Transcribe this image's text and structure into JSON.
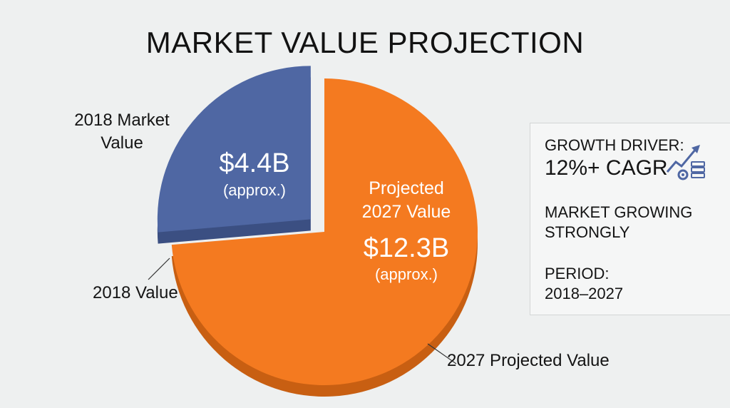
{
  "title": "MARKET VALUE PROJECTION",
  "labels": {
    "market_2018_line1": "2018 Market",
    "market_2018_line2": "Value",
    "value_2018": "2018 Value",
    "projected_2027": "2027 Projected Value"
  },
  "slices_text": {
    "blue_value": "$4.4B",
    "blue_approx": "(approx.)",
    "orange_line1": "Projected",
    "orange_line2": "2027 Value",
    "orange_value": "$12.3B",
    "orange_approx": "(approx.)"
  },
  "info_box": {
    "driver_label": "GROWTH DRIVER:",
    "driver_value": "12%+ CAGR",
    "growing_line1": "MARKET GROWING",
    "growing_line2": "STRONGLY",
    "period_label": "PERIOD:",
    "period_value": "2018–2027",
    "icon": "growth-chart-icon"
  },
  "colors": {
    "blue": "#4f67a3",
    "blue_dark": "#3b4f82",
    "orange": "#f47a20",
    "orange_dark": "#c85f12",
    "background": "#eef0f0",
    "icon": "#4f67a3"
  },
  "chart_data": {
    "type": "pie",
    "title": "MARKET VALUE PROJECTION",
    "categories": [
      "2018 Value",
      "2027 Projected Value"
    ],
    "values": [
      4.4,
      12.3
    ],
    "units": "$B",
    "exploded": [
      "2018 Value"
    ]
  }
}
